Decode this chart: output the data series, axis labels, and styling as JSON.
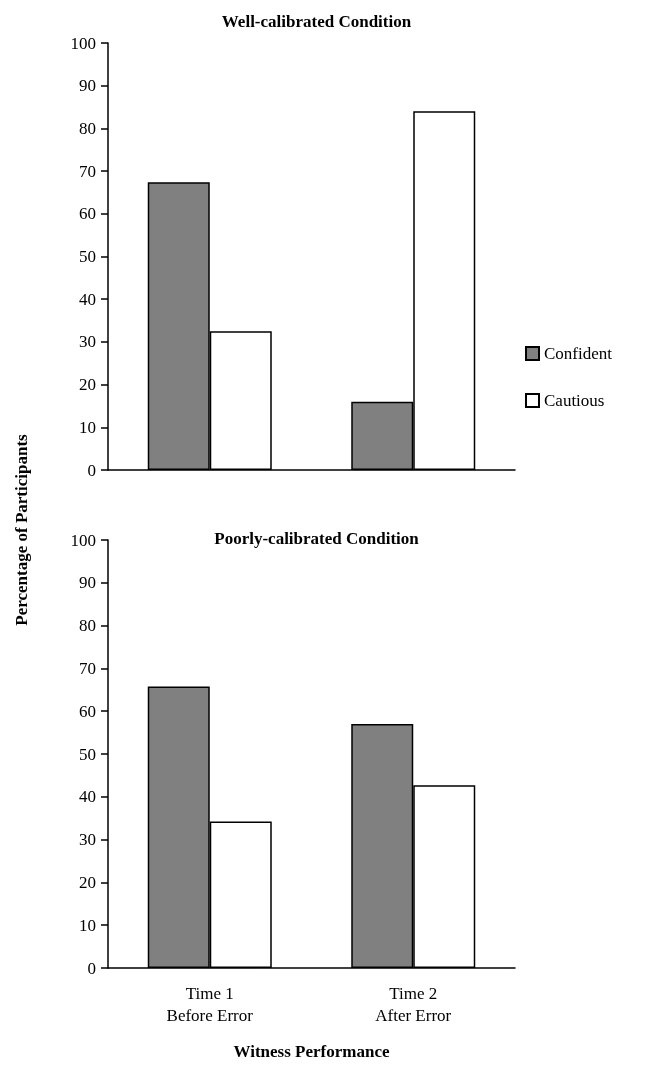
{
  "chart_data": [
    {
      "type": "bar",
      "title": "Well-calibrated Condition",
      "ylabel": "Percentage of Participants",
      "categories": [
        null,
        null
      ],
      "series": [
        {
          "name": "Confident",
          "color": "#808080",
          "values": [
            67.4,
            16.0
          ]
        },
        {
          "name": "Cautious",
          "color": "#ffffff",
          "values": [
            32.5,
            84.0
          ]
        }
      ],
      "ylim": [
        0,
        100
      ],
      "yticks": [
        0,
        10,
        20,
        30,
        40,
        50,
        60,
        70,
        80,
        90,
        100
      ],
      "grid": false,
      "legend": "right",
      "tick_labels": "y"
    },
    {
      "type": "bar",
      "title": "Poorly-calibrated Condition",
      "xlabel": "Witness Performance",
      "categories": [
        "Time 1\nBefore Error",
        "Time 2\nAfter Error"
      ],
      "series": [
        {
          "color": "#808080",
          "values": [
            65.8,
            57.0
          ]
        },
        {
          "color": "#ffffff",
          "values": [
            34.2,
            42.7
          ]
        }
      ],
      "ylim": [
        0,
        100
      ],
      "yticks": [
        0,
        10,
        20,
        30,
        40,
        50,
        60,
        70,
        80,
        90,
        100
      ],
      "grid": false,
      "legend": false
    }
  ]
}
